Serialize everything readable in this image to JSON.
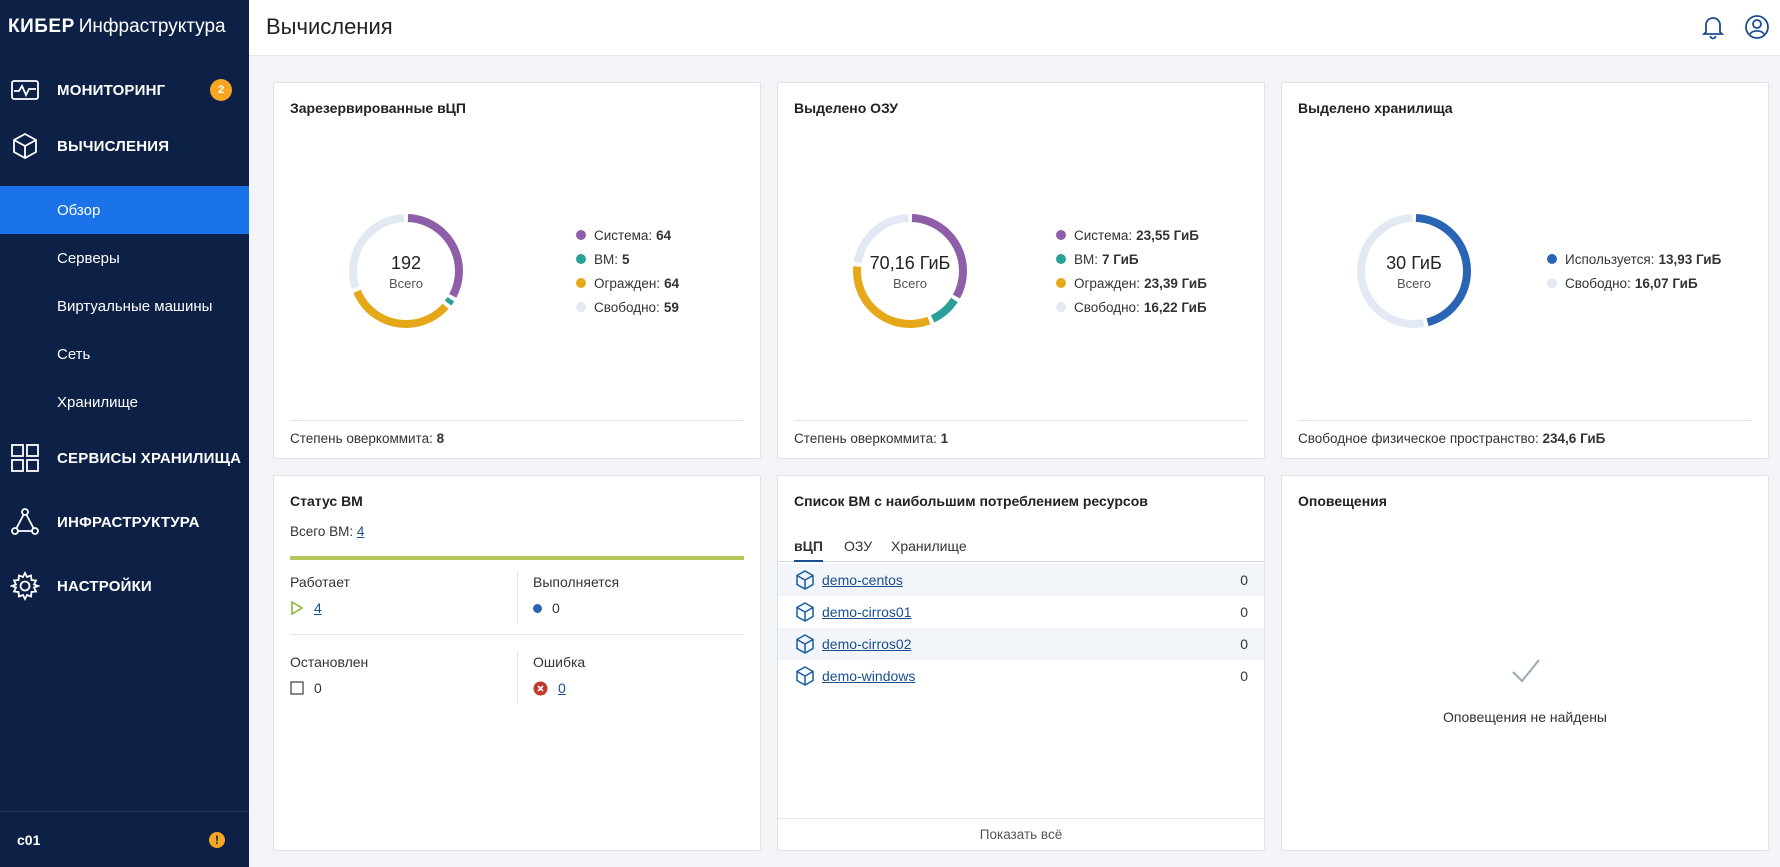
{
  "brand": {
    "bold": "КИБЕР",
    "rest": "Инфраструктура"
  },
  "sidebar": {
    "items": [
      {
        "label": "МОНИТОРИНГ",
        "icon": "monitor-icon",
        "badge": "2"
      },
      {
        "label": "ВЫЧИСЛЕНИЯ",
        "icon": "cube-icon"
      },
      {
        "label": "СЕРВИСЫ ХРАНИЛИЩА",
        "icon": "grid-icon"
      },
      {
        "label": "ИНФРАСТРУКТУРА",
        "icon": "triangle-nodes-icon"
      },
      {
        "label": "НАСТРОЙКИ",
        "icon": "gear-icon"
      }
    ],
    "sub_items": [
      "Обзор",
      "Серверы",
      "Виртуальные машины",
      "Сеть",
      "Хранилище"
    ],
    "footer": {
      "node": "c01",
      "warning": "!"
    }
  },
  "header": {
    "title": "Вычисления",
    "icons": [
      "bell-icon",
      "user-icon"
    ]
  },
  "colors": {
    "system": "#8e5ea8",
    "vm": "#2aa198",
    "fenced": "#e5a818",
    "free": "#e3e9f3",
    "used": "#2a64b4"
  },
  "cpu": {
    "title": "Зарезервированные вЦП",
    "total": "192",
    "total_label": "Всего",
    "legend": [
      {
        "label": "Система:",
        "value": "64"
      },
      {
        "label": "ВМ:",
        "value": "5"
      },
      {
        "label": "Огражден:",
        "value": "64"
      },
      {
        "label": "Свободно:",
        "value": "59"
      }
    ],
    "footer_label": "Степень оверкоммита:",
    "footer_value": "8"
  },
  "ram": {
    "title": "Выделено ОЗУ",
    "total": "70,16 ГиБ",
    "total_label": "Всего",
    "legend": [
      {
        "label": "Система:",
        "value": "23,55 ГиБ"
      },
      {
        "label": "ВМ:",
        "value": "7 ГиБ"
      },
      {
        "label": "Огражден:",
        "value": "23,39 ГиБ"
      },
      {
        "label": "Свободно:",
        "value": "16,22 ГиБ"
      }
    ],
    "footer_label": "Степень оверкоммита:",
    "footer_value": "1"
  },
  "storage": {
    "title": "Выделено хранилища",
    "total": "30 ГиБ",
    "total_label": "Всего",
    "legend": [
      {
        "label": "Используется:",
        "value": "13,93 ГиБ"
      },
      {
        "label": "Свободно:",
        "value": "16,07 ГиБ"
      }
    ],
    "footer_label": "Свободное физическое пространство:",
    "footer_value": "234,6 ГиБ"
  },
  "vm_status": {
    "title": "Статус ВМ",
    "total_label": "Всего ВМ:",
    "total_value": "4",
    "running_label": "Работает",
    "running_value": "4",
    "executing_label": "Выполняется",
    "executing_value": "0",
    "stopped_label": "Остановлен",
    "stopped_value": "0",
    "error_label": "Ошибка",
    "error_value": "0"
  },
  "top_vms": {
    "title": "Список ВМ с наибольшим потреблением ресурсов",
    "tabs": [
      "вЦП",
      "ОЗУ",
      "Хранилище"
    ],
    "rows": [
      {
        "name": "demo-centos",
        "value": "0"
      },
      {
        "name": "demo-cirros01",
        "value": "0"
      },
      {
        "name": "demo-cirros02",
        "value": "0"
      },
      {
        "name": "demo-windows",
        "value": "0"
      }
    ],
    "show_all": "Показать всё"
  },
  "alerts": {
    "title": "Оповещения",
    "empty_text": "Оповещения не найдены"
  }
}
